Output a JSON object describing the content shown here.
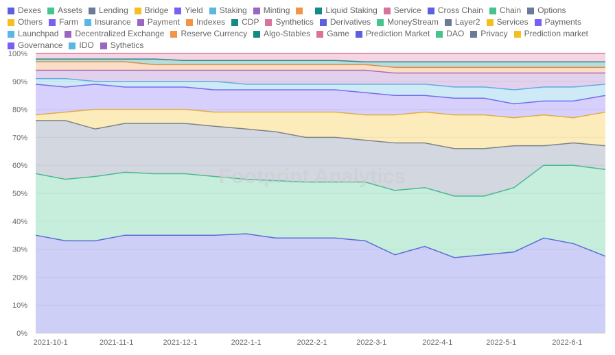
{
  "chart_data": {
    "type": "area",
    "stacked": true,
    "normalized": true,
    "watermark": "Footprint Analytics",
    "ylim": [
      0,
      100
    ],
    "y_ticks": [
      "0%",
      "10%",
      "20%",
      "30%",
      "40%",
      "50%",
      "60%",
      "70%",
      "80%",
      "90%",
      "100%"
    ],
    "x_ticks": [
      "2021-10-1",
      "2021-11-1",
      "2021-12-1",
      "2022-1-1",
      "2022-2-1",
      "2022-3-1",
      "2022-4-1",
      "2022-5-1",
      "2022-6-1"
    ],
    "legend_position": "top",
    "x": [
      "2021-09-24",
      "2021-10-08",
      "2021-10-22",
      "2021-11-05",
      "2021-11-19",
      "2021-12-03",
      "2021-12-17",
      "2022-01-01",
      "2022-01-15",
      "2022-01-29",
      "2022-02-12",
      "2022-02-26",
      "2022-03-12",
      "2022-03-26",
      "2022-04-09",
      "2022-04-23",
      "2022-05-07",
      "2022-05-21",
      "2022-06-04",
      "2022-06-19"
    ],
    "series": [
      {
        "name": "Dexes",
        "color": "#5b5fe0",
        "values": [
          35,
          33,
          33,
          35,
          35,
          35,
          35,
          35.5,
          34,
          34,
          34,
          33,
          28,
          31,
          27,
          28,
          29,
          34,
          32,
          27.5
        ]
      },
      {
        "name": "Assets",
        "color": "#45c48e",
        "values": [
          22,
          22,
          23,
          22.5,
          22,
          22,
          21,
          19.5,
          20.5,
          20,
          20,
          21,
          23,
          21,
          22,
          21,
          23,
          26,
          28,
          31
        ]
      },
      {
        "name": "Lending",
        "color": "#6b7a99",
        "values": [
          19,
          21,
          17,
          17.5,
          18,
          18,
          18,
          18,
          17.5,
          16,
          16,
          15,
          17,
          16,
          17,
          17,
          15,
          7,
          8,
          8.5
        ]
      },
      {
        "name": "Bridge",
        "color": "#f5bf22",
        "values": [
          2,
          3,
          7,
          5,
          5,
          5,
          5,
          6,
          7,
          9,
          9,
          9,
          10,
          11,
          12,
          12,
          10,
          11,
          9,
          12
        ]
      },
      {
        "name": "Yield",
        "color": "#7a5ff5",
        "values": [
          11,
          9,
          9,
          8,
          8,
          8,
          8,
          8,
          8,
          8,
          8,
          8,
          7,
          6,
          6,
          6,
          5,
          5,
          6,
          6
        ]
      },
      {
        "name": "Staking",
        "color": "#5ab8e0",
        "values": [
          2,
          3,
          1,
          2,
          2,
          2,
          3,
          2,
          2,
          2,
          2,
          3,
          4,
          4,
          4,
          4,
          5,
          5,
          5,
          4
        ]
      },
      {
        "name": "Minting",
        "color": "#9b66c2",
        "values": [
          3,
          3,
          4,
          4,
          4,
          4,
          4,
          5,
          5,
          5,
          5,
          5,
          4,
          4,
          5,
          5,
          6,
          5,
          5,
          4
        ]
      },
      {
        "name": "",
        "color": "#f59347",
        "values": [
          3,
          3,
          3,
          3,
          2,
          2,
          2,
          2,
          2,
          2,
          2,
          2,
          2,
          2,
          2,
          2,
          2,
          2,
          2,
          2
        ]
      },
      {
        "name": "Liquid Staking",
        "color": "#138a84",
        "values": [
          1,
          1,
          1,
          1,
          2,
          1.5,
          1.5,
          1.5,
          1.5,
          1.5,
          1.5,
          1,
          2,
          2,
          2,
          2,
          2,
          2,
          2,
          2
        ]
      },
      {
        "name": "Service",
        "color": "#d9739b",
        "values": [
          2,
          2,
          2,
          2,
          2,
          2.5,
          2.5,
          2.5,
          2.5,
          2.5,
          2.5,
          3,
          3,
          3,
          3,
          3,
          3,
          3,
          3,
          3
        ]
      },
      {
        "name": "Cross Chain",
        "color": "#5b5fe0"
      },
      {
        "name": "Chain",
        "color": "#45c48e"
      },
      {
        "name": "Options",
        "color": "#6b7a99"
      },
      {
        "name": "Others",
        "color": "#f5bf22"
      },
      {
        "name": "Farm",
        "color": "#7a5ff5"
      },
      {
        "name": "Insurance",
        "color": "#5ab8e0"
      },
      {
        "name": "Payment",
        "color": "#9b66c2"
      },
      {
        "name": "Indexes",
        "color": "#f59347"
      },
      {
        "name": "CDP",
        "color": "#138a84"
      },
      {
        "name": "Synthetics",
        "color": "#d9739b"
      },
      {
        "name": "Derivatives",
        "color": "#5b5fe0"
      },
      {
        "name": "MoneyStream",
        "color": "#45c48e"
      },
      {
        "name": "Layer2",
        "color": "#6b7a99"
      },
      {
        "name": "Services",
        "color": "#f5bf22"
      },
      {
        "name": "Payments",
        "color": "#7a5ff5"
      },
      {
        "name": "Launchpad",
        "color": "#5ab8e0"
      },
      {
        "name": "Decentralized Exchange",
        "color": "#9b66c2"
      },
      {
        "name": "Reserve Currency",
        "color": "#f59347"
      },
      {
        "name": "Algo-Stables",
        "color": "#138a84"
      },
      {
        "name": "Game",
        "color": "#d9739b"
      },
      {
        "name": "Prediction Market",
        "color": "#5b5fe0"
      },
      {
        "name": "DAO",
        "color": "#45c48e"
      },
      {
        "name": "Privacy",
        "color": "#6b7a99"
      },
      {
        "name": "Prediction market",
        "color": "#f5bf22"
      },
      {
        "name": "Governance",
        "color": "#7a5ff5"
      },
      {
        "name": "IDO",
        "color": "#5ab8e0"
      },
      {
        "name": "Sythetics",
        "color": "#9b66c2"
      }
    ]
  }
}
